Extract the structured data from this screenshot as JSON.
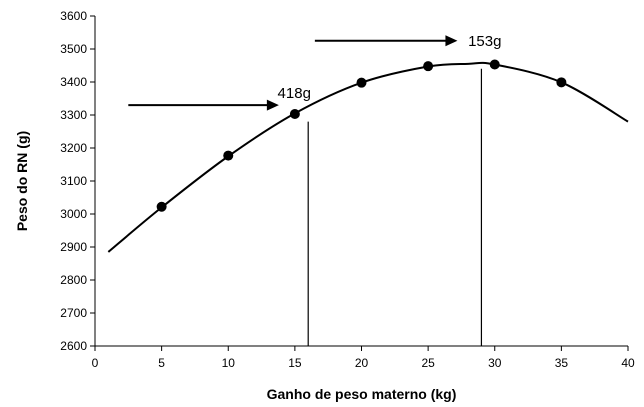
{
  "chart_data": {
    "type": "line",
    "xlabel": "Ganho de peso materno (kg)",
    "ylabel": "Peso do RN (g)",
    "xlim": [
      0,
      40
    ],
    "ylim": [
      2600,
      3600
    ],
    "xticks": [
      0,
      5,
      10,
      15,
      20,
      25,
      30,
      35,
      40
    ],
    "yticks": [
      2600,
      2700,
      2800,
      2900,
      3000,
      3100,
      3200,
      3300,
      3400,
      3500,
      3600
    ],
    "grid": false,
    "legend": "none",
    "series": [
      {
        "curve": {
          "x": [
            1,
            5,
            10,
            15,
            20,
            25,
            28,
            30,
            35,
            40
          ],
          "y": [
            2885,
            3020,
            3175,
            3305,
            3398,
            3447,
            3455,
            3453,
            3399,
            3280
          ]
        },
        "markers": {
          "x": [
            5,
            10,
            15,
            20,
            25,
            30,
            35
          ],
          "y": [
            3022,
            3177,
            3303,
            3398,
            3448,
            3453,
            3399
          ]
        },
        "color": "#000000"
      }
    ],
    "vertical_lines": [
      {
        "x": 16,
        "y_top": 3280
      },
      {
        "x": 29,
        "y_top": 3440
      }
    ],
    "annotations": [
      {
        "text": "418g",
        "arrow_from_x": 2.5,
        "arrow_to_x": 13.8,
        "y": 3330,
        "label_x": 13.7,
        "label_y": 3367
      },
      {
        "text": "153g",
        "arrow_from_x": 16.5,
        "arrow_to_x": 27.2,
        "y": 3525,
        "label_x": 28,
        "label_y": 3524
      }
    ]
  }
}
